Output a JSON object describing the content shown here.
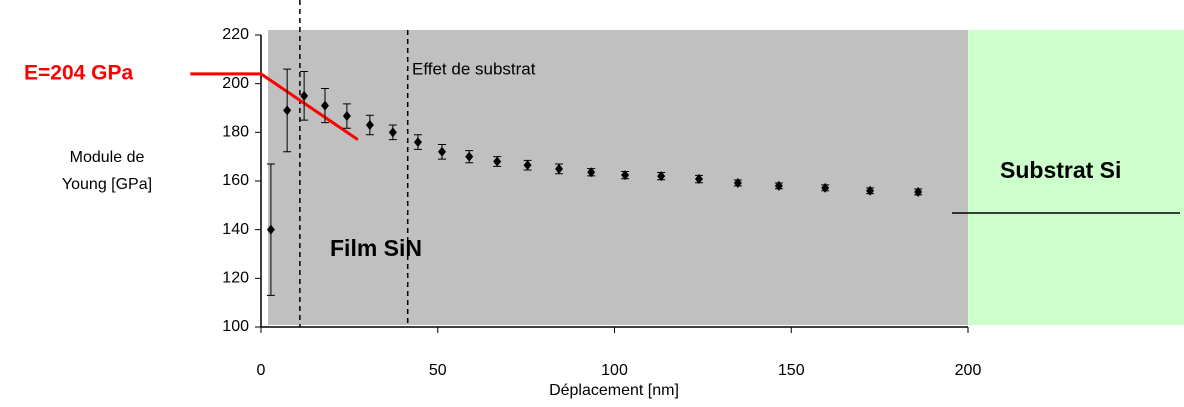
{
  "chart_data": {
    "type": "scatter",
    "annotation_left": "E=204 GPa",
    "annotation_substrate_effect": "Effet de substrat",
    "annotation_film": "Film SiN",
    "annotation_substrate": "Substrat Si",
    "ylabel": [
      "Module de",
      "Young [GPa]"
    ],
    "xlabel": "Déplacement [nm]",
    "xlim": [
      0,
      200
    ],
    "ylim": [
      100,
      220
    ],
    "xticks": [
      0,
      50,
      100,
      150,
      200
    ],
    "yticks": [
      100,
      120,
      140,
      160,
      180,
      200,
      220
    ],
    "vlines": [
      11,
      41.5
    ],
    "series": [
      {
        "color": "#000000",
        "x": [
          2.8,
          7.4,
          12.2,
          18.1,
          24.3,
          30.8,
          37.3,
          44.4,
          51.2,
          58.9,
          66.8,
          75.4,
          84.3,
          93.4,
          103,
          113.2,
          123.9,
          134.9,
          146.5,
          159.6,
          172.3,
          185.9
        ],
        "values": [
          140,
          189,
          195,
          191,
          186.7,
          183,
          180,
          176,
          172,
          170,
          168,
          166.5,
          165,
          163.6,
          162.4,
          162,
          160.8,
          159.2,
          158,
          157.2,
          156,
          155.5
        ],
        "errors": [
          27,
          17,
          10,
          7,
          5,
          4,
          3,
          3,
          3,
          2.5,
          2,
          2,
          2,
          1.5,
          1.5,
          1.5,
          1.5,
          1.2,
          1.2,
          1.2,
          1.2,
          1.2
        ]
      },
      {
        "color": "#ff0000",
        "x": [
          -20,
          0,
          27.4
        ],
        "values": [
          204,
          204,
          177
        ]
      }
    ]
  }
}
